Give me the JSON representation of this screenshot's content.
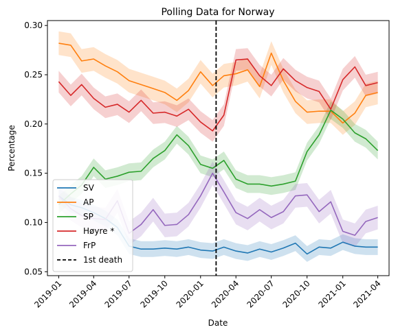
{
  "chart_data": {
    "type": "line",
    "title": "Polling Data for Norway",
    "xlabel": "Date",
    "ylabel": "Percentage",
    "x_range": [
      "2018-12-03",
      "2021-04-30"
    ],
    "ylim": [
      0.046,
      0.305
    ],
    "yticks": [
      0.05,
      0.1,
      0.15,
      0.2,
      0.25,
      0.3
    ],
    "ytick_labels": [
      "0.05",
      "0.10",
      "0.15",
      "0.20",
      "0.25",
      "0.30"
    ],
    "xticks": [
      "2019-01-01",
      "2019-04-01",
      "2019-07-01",
      "2019-10-01",
      "2020-01-01",
      "2020-04-01",
      "2020-07-01",
      "2020-10-01",
      "2021-01-01",
      "2021-04-01"
    ],
    "xtick_labels": [
      "2019-01",
      "2019-04",
      "2019-07",
      "2019-10",
      "2020-01",
      "2020-04",
      "2020-07",
      "2020-10",
      "2021-01",
      "2021-04"
    ],
    "grid": false,
    "legend": "lower-left",
    "x": [
      "2019-01-01",
      "2019-02-01",
      "2019-03-01",
      "2019-04-01",
      "2019-05-01",
      "2019-06-01",
      "2019-07-01",
      "2019-08-01",
      "2019-09-01",
      "2019-10-01",
      "2019-11-01",
      "2019-12-01",
      "2020-01-01",
      "2020-02-01",
      "2020-03-01",
      "2020-04-01",
      "2020-05-01",
      "2020-06-01",
      "2020-07-01",
      "2020-08-01",
      "2020-09-01",
      "2020-10-01",
      "2020-11-01",
      "2020-12-01",
      "2021-01-01",
      "2021-02-01",
      "2021-03-01",
      "2021-04-01"
    ],
    "series": [
      {
        "name": "SV",
        "color": "#1f77b4",
        "values": [
          0.127,
          0.118,
          0.115,
          0.11,
          0.104,
          0.095,
          0.076,
          0.073,
          0.073,
          0.074,
          0.073,
          0.075,
          0.072,
          0.071,
          0.075,
          0.071,
          0.069,
          0.073,
          0.07,
          0.074,
          0.079,
          0.068,
          0.075,
          0.074,
          0.08,
          0.076,
          0.075,
          0.075
        ],
        "band": 0.008
      },
      {
        "name": "AP",
        "color": "#ff7f0e",
        "values": [
          0.282,
          0.28,
          0.264,
          0.266,
          0.259,
          0.253,
          0.244,
          0.24,
          0.236,
          0.232,
          0.224,
          0.234,
          0.253,
          0.239,
          0.249,
          0.251,
          0.255,
          0.238,
          0.272,
          0.244,
          0.223,
          0.212,
          0.213,
          0.213,
          0.201,
          0.211,
          0.229,
          0.232
        ],
        "band": 0.012
      },
      {
        "name": "SP",
        "color": "#2ca02c",
        "values": [
          0.118,
          0.129,
          0.138,
          0.156,
          0.144,
          0.147,
          0.151,
          0.152,
          0.165,
          0.173,
          0.189,
          0.178,
          0.159,
          0.155,
          0.163,
          0.144,
          0.139,
          0.139,
          0.137,
          0.139,
          0.142,
          0.172,
          0.189,
          0.214,
          0.205,
          0.191,
          0.185,
          0.173
        ],
        "band": 0.009
      },
      {
        "name": "Høyre *",
        "color": "#d62728",
        "values": [
          0.243,
          0.229,
          0.24,
          0.226,
          0.217,
          0.22,
          0.212,
          0.224,
          0.211,
          0.212,
          0.208,
          0.215,
          0.202,
          0.193,
          0.209,
          0.265,
          0.266,
          0.249,
          0.239,
          0.256,
          0.244,
          0.237,
          0.233,
          0.215,
          0.245,
          0.258,
          0.239,
          0.242
        ],
        "band": 0.011
      },
      {
        "name": "FrP",
        "color": "#9467bd",
        "values": [
          0.127,
          0.114,
          0.107,
          0.104,
          0.103,
          0.122,
          0.089,
          0.098,
          0.113,
          0.097,
          0.098,
          0.108,
          0.127,
          0.15,
          0.131,
          0.11,
          0.104,
          0.113,
          0.105,
          0.111,
          0.127,
          0.128,
          0.111,
          0.121,
          0.091,
          0.087,
          0.101,
          0.105
        ],
        "band": 0.012
      }
    ],
    "vline": {
      "x": "2020-02-10",
      "label": "1st death",
      "color": "#000000",
      "style": "dashed"
    }
  }
}
